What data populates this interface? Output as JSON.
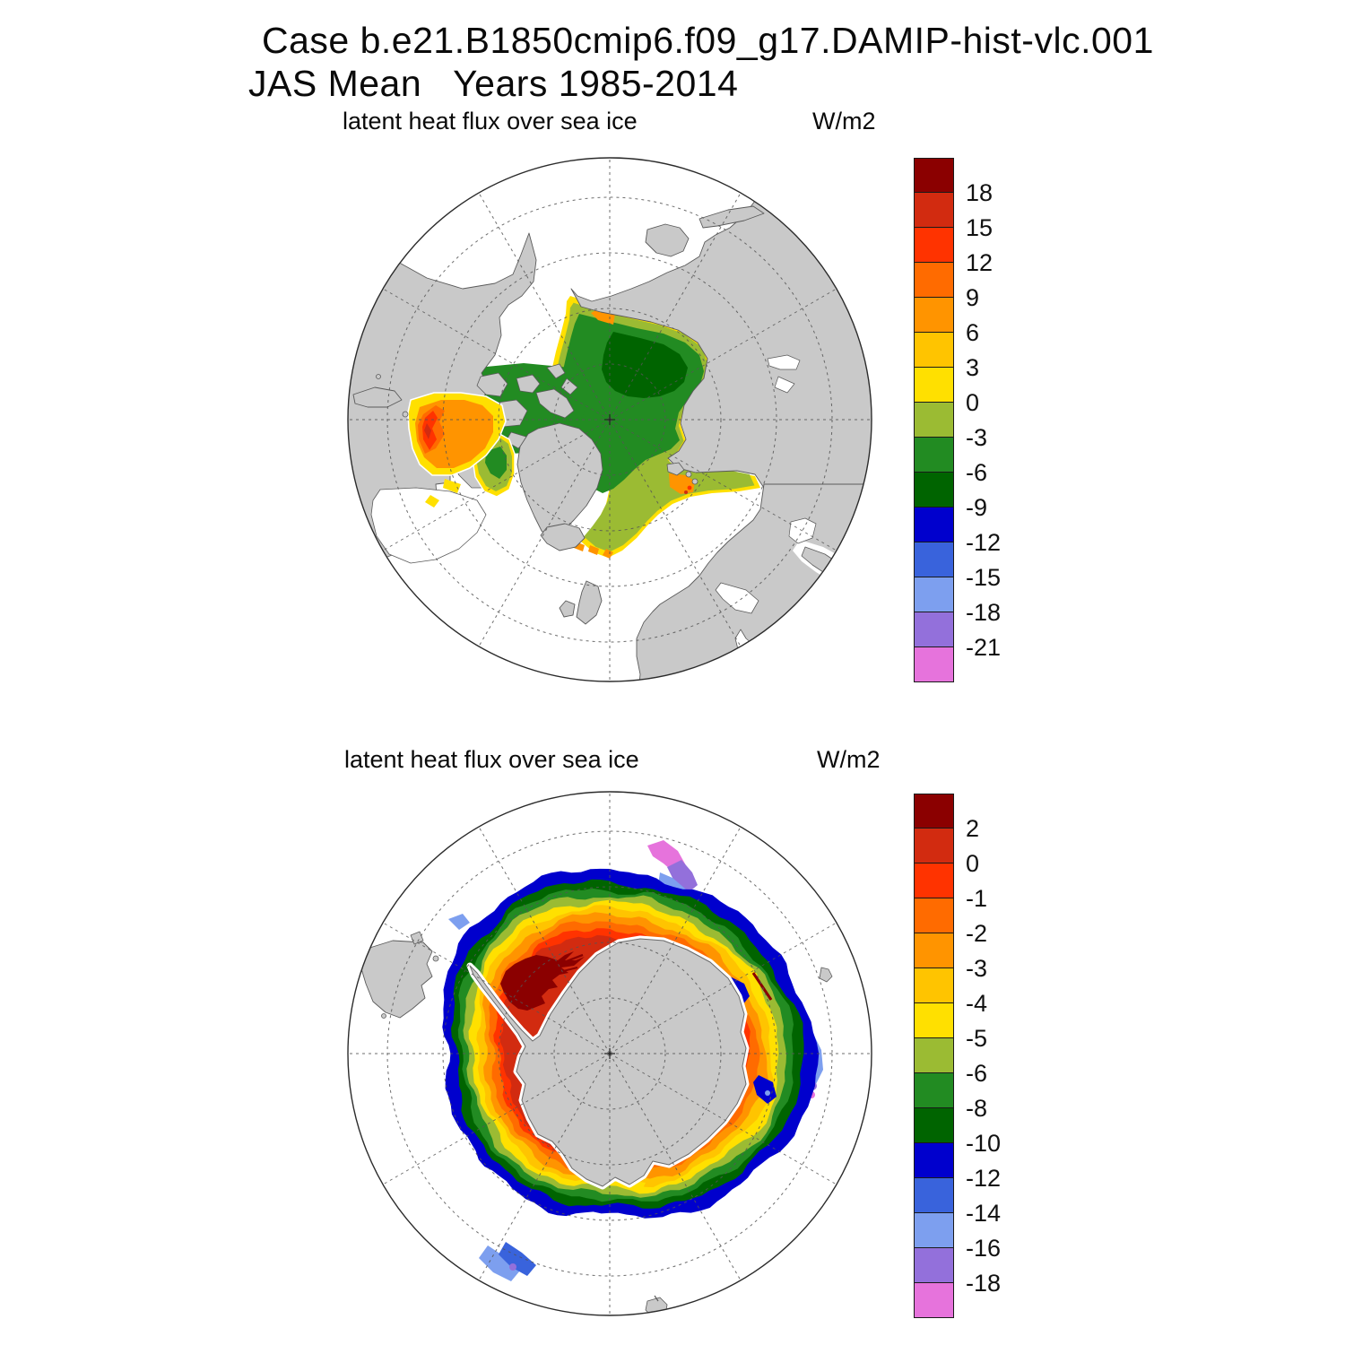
{
  "title": {
    "line1": "Case b.e21.B1850cmip6.f09_g17.DAMIP-hist-vlc.001",
    "line2": "JAS Mean   Years 1985-2014"
  },
  "palette": {
    "deep_red": "#8B0000",
    "red": "#D22B10",
    "orange_red": "#FF3300",
    "orange": "#FF6B00",
    "light_orange": "#FF9400",
    "amber": "#FFC400",
    "yellow": "#FFE000",
    "yellow_green": "#9BBB33",
    "green": "#228B22",
    "dark_green": "#006400",
    "blue": "#0000CD",
    "medium_blue": "#3963DC",
    "light_blue": "#7D9FEF",
    "purple": "#9370DB",
    "pink": "#E673DC"
  },
  "map_style": {
    "land": "#C9C9C9",
    "coast": "#5A5A5A",
    "ocean": "#FFFFFF",
    "graticule": "#555555",
    "outline": "#2B2B2B"
  },
  "panels": [
    {
      "id": "arctic",
      "subtitle": "latent heat flux over sea ice",
      "units_label": "W/m2",
      "colorbar": {
        "colors": [
          "#8B0000",
          "#D22B10",
          "#FF3300",
          "#FF6B00",
          "#FF9400",
          "#FFC400",
          "#FFE000",
          "#9BBB33",
          "#228B22",
          "#006400",
          "#0000CD",
          "#3963DC",
          "#7D9FEF",
          "#9370DB",
          "#E673DC"
        ],
        "tick_labels": [
          "18",
          "15",
          "12",
          "9",
          "6",
          "3",
          "0",
          "-3",
          "-6",
          "-9",
          "-12",
          "-15",
          "-18",
          "-21"
        ]
      }
    },
    {
      "id": "antarctic",
      "subtitle": "latent heat flux over sea ice",
      "units_label": "W/m2",
      "colorbar": {
        "colors": [
          "#8B0000",
          "#D22B10",
          "#FF3300",
          "#FF6B00",
          "#FF9400",
          "#FFC400",
          "#FFE000",
          "#9BBB33",
          "#228B22",
          "#006400",
          "#0000CD",
          "#3963DC",
          "#7D9FEF",
          "#9370DB",
          "#E673DC"
        ],
        "tick_labels": [
          "2",
          "0",
          "-1",
          "-2",
          "-3",
          "-4",
          "-5",
          "-6",
          "-8",
          "-10",
          "-12",
          "-14",
          "-16",
          "-18"
        ]
      }
    }
  ],
  "chart_data": [
    {
      "type": "filled_contour_map",
      "title": "latent heat flux over sea ice",
      "units": "W/m2",
      "region": "Arctic, north polar view",
      "contour_levels": [
        18,
        15,
        12,
        9,
        6,
        3,
        0,
        -3,
        -6,
        -9,
        -12,
        -15,
        -18,
        -21
      ],
      "palette_top_to_bottom": [
        "#8B0000",
        "#D22B10",
        "#FF3300",
        "#FF6B00",
        "#FF9400",
        "#FFC400",
        "#FFE000",
        "#9BBB33",
        "#228B22",
        "#006400",
        "#0000CD",
        "#3963DC",
        "#7D9FEF",
        "#9370DB",
        "#E673DC"
      ],
      "legend_position": "right",
      "field_summary": "Central Arctic pack ice mostly -6 to -3 W/m2 (green) with a -9 to -6 dark-green core near the pole and along northeast Greenland; rimmed by -3 to 0 (yellow-green) and 0 to 3 (yellow); orange fringes (3 to 9) along the Bering Strait, southeast Greenland and Barents Sea ice edges; a 6 to 15 W/m2 orange-red patch fills Foxe Basin / Hudson Bay."
    },
    {
      "type": "filled_contour_map",
      "title": "latent heat flux over sea ice",
      "units": "W/m2",
      "region": "Antarctic, south polar view",
      "contour_levels": [
        2,
        0,
        -1,
        -2,
        -3,
        -4,
        -5,
        -6,
        -8,
        -10,
        -12,
        -14,
        -16,
        -18
      ],
      "palette_top_to_bottom": [
        "#8B0000",
        "#D22B10",
        "#FF3300",
        "#FF6B00",
        "#FF9400",
        "#FFC400",
        "#FFE000",
        "#9BBB33",
        "#228B22",
        "#006400",
        "#0000CD",
        "#3963DC",
        "#7D9FEF",
        "#9370DB",
        "#E673DC"
      ],
      "legend_position": "right",
      "field_summary": "Concentric rings around Antarctica: 0 to 2 W/m2 (red) next to the coast with a greater-than-2 dark-red streaky patch in the Weddell Sea, decreasing outward through orange, yellow, green and dark-green bands to a blue (-10 to -12) outer ice edge; light-blue, violet and pink patches (-14 to -18) at the outer edge north-northeast and east of the map."
    }
  ]
}
